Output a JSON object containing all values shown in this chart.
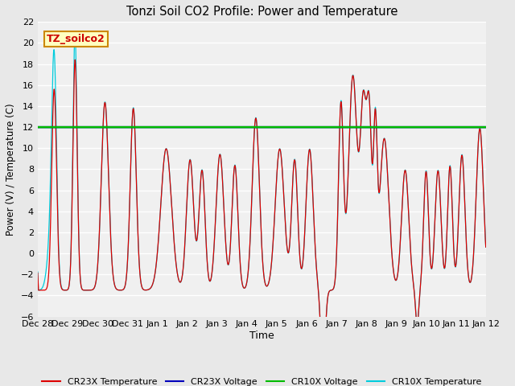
{
  "title": "Tonzi Soil CO2 Profile: Power and Temperature",
  "ylabel": "Power (V) / Temperature (C)",
  "xlabel": "Time",
  "ylim": [
    -6,
    22
  ],
  "yticks": [
    -6,
    -4,
    -2,
    0,
    2,
    4,
    6,
    8,
    10,
    12,
    14,
    16,
    18,
    20,
    22
  ],
  "annotation_text": "TZ_soilco2",
  "annotation_box_color": "#ffffc0",
  "annotation_box_edge": "#cc8800",
  "annotation_text_color": "#cc0000",
  "cr23x_temp_color": "#dd0000",
  "cr23x_volt_color": "#0000bb",
  "cr10x_volt_color": "#00bb00",
  "cr10x_temp_color": "#00ccdd",
  "bg_color": "#e8e8e8",
  "plot_bg_color": "#f0f0f0",
  "grid_color": "#ffffff",
  "constant_volt_value": 12.0,
  "legend_labels": [
    "CR23X Temperature",
    "CR23X Voltage",
    "CR10X Voltage",
    "CR10X Temperature"
  ],
  "xtick_labels": [
    "Dec 28",
    "Dec 29",
    "Dec 30",
    "Dec 31",
    "Jan 1",
    "Jan 2",
    "Jan 3",
    "Jan 4",
    "Jan 5",
    "Jan 6",
    "Jan 7",
    "Jan 8",
    "Jan 9",
    "Jan 10",
    "Jan 11",
    "Jan 12"
  ],
  "figsize": [
    6.4,
    4.8
  ],
  "dpi": 100
}
